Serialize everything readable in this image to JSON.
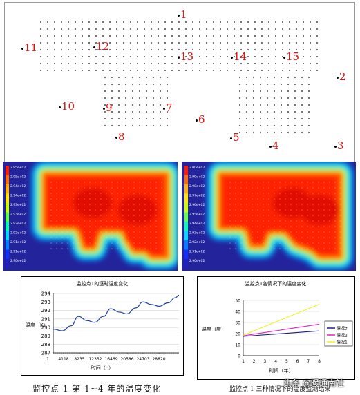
{
  "monitor_map": {
    "points": [
      {
        "label": "1"
      },
      {
        "label": "2"
      },
      {
        "label": "3"
      },
      {
        "label": "4"
      },
      {
        "label": "5"
      },
      {
        "label": "6"
      },
      {
        "label": "7"
      },
      {
        "label": "8"
      },
      {
        "label": "9"
      },
      {
        "label": "10"
      },
      {
        "label": "11"
      },
      {
        "label": "12"
      },
      {
        "label": "13"
      },
      {
        "label": "14"
      },
      {
        "label": "15"
      }
    ],
    "label_color": "#e01010"
  },
  "heatmaps": [
    {
      "colorbar": [
        "2.95e+02",
        "2.95e+02",
        "2.94e+02",
        "2.94e+02",
        "2.93e+02",
        "2.93e+02",
        "2.92e+02",
        "2.92e+02",
        "2.91e+02",
        "2.91e+02",
        "2.90e+02"
      ]
    },
    {
      "colorbar": [
        "3.00e+02",
        "2.99e+02",
        "2.98e+02",
        "2.97e+02",
        "2.96e+02",
        "2.95e+02",
        "2.94e+02",
        "2.93e+02",
        "2.92e+02",
        "2.91e+02",
        "2.90e+02"
      ]
    }
  ],
  "chart_data": [
    {
      "type": "line",
      "title": "监控点1的逐时温度变化",
      "ylabel": "温度（K）",
      "xlabel": "时间（h）",
      "x_ticks": [
        "1",
        "4118",
        "8235",
        "12352",
        "16469",
        "20586",
        "24703",
        "28820"
      ],
      "y_ticks": [
        287,
        288,
        289,
        290,
        291,
        292,
        293,
        294
      ],
      "ylim": [
        287,
        294
      ],
      "xlim": [
        1,
        35040
      ],
      "series": [
        {
          "color": "#1f3f9f",
          "x": [
            1,
            2500,
            5000,
            7000,
            9500,
            11500,
            14000,
            16000,
            18500,
            20500,
            23000,
            25000,
            27500,
            29500,
            32000,
            34000,
            35040
          ],
          "values": [
            289.8,
            289.6,
            290.2,
            291.3,
            290.8,
            290.6,
            291.3,
            292.2,
            291.8,
            291.6,
            292.3,
            293.0,
            292.7,
            292.5,
            292.9,
            293.5,
            293.8
          ]
        }
      ]
    },
    {
      "type": "line",
      "title": "监控点1各情况下的温度变化",
      "ylabel": "温度（度）",
      "xlabel": "时间（年）",
      "categories": [
        1,
        2,
        3,
        4,
        5,
        6,
        7,
        8
      ],
      "ylim": [
        0,
        50
      ],
      "y_ticks": [
        0,
        10,
        20,
        30,
        40,
        50
      ],
      "legend_position": "right",
      "series": [
        {
          "name": "情况3",
          "color": "#1a1a8a",
          "values": [
            17.5,
            18.2,
            18.9,
            19.6,
            20.3,
            21.0,
            21.7,
            22.4
          ]
        },
        {
          "name": "情况2",
          "color": "#e020c0",
          "values": [
            18.0,
            19.5,
            21.0,
            22.5,
            24.0,
            25.5,
            27.0,
            28.5
          ]
        },
        {
          "name": "情况1",
          "color": "#f0f020",
          "values": [
            18.5,
            22.5,
            26.5,
            30.5,
            34.5,
            38.5,
            42.5,
            46.5
          ]
        }
      ]
    }
  ],
  "captions": {
    "left": "监控点 1 第 1~4 年的温度变化",
    "right": "监控点 1 三种情况下的温度监测结果"
  },
  "watermark": "头条 @暖通南社"
}
